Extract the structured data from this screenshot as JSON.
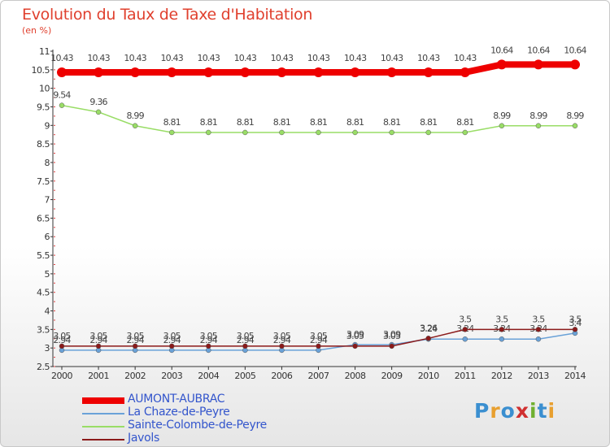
{
  "header": {
    "title": "Evolution du Taux de Taxe d'Habitation",
    "unit": "(en %)"
  },
  "logo": {
    "text": "Proxiti",
    "letters": [
      "P",
      "r",
      "o",
      "x",
      "i",
      "t",
      "i"
    ],
    "colors": [
      "#3b8fd0",
      "#e8a030",
      "#3b8fd0",
      "#d03030",
      "#70b030",
      "#3b8fd0",
      "#e8a030"
    ]
  },
  "chart_data": {
    "type": "line",
    "title": "Evolution du Taux de Taxe d'Habitation",
    "ylabel": "(en %)",
    "xlabel": "",
    "x": [
      "2000",
      "2001",
      "2002",
      "2003",
      "2004",
      "2005",
      "2006",
      "2007",
      "2008",
      "2009",
      "2010",
      "2011",
      "2012",
      "2013",
      "2014"
    ],
    "ylim": [
      2.5,
      11
    ],
    "yticks": [
      "2.5",
      "3",
      "3.5",
      "4",
      "4.5",
      "5",
      "5.5",
      "6",
      "6.5",
      "7",
      "7.5",
      "8",
      "8.5",
      "9",
      "9.5",
      "10",
      "10.5",
      "11"
    ],
    "grid": false,
    "legend_position": "bottom-left",
    "series": [
      {
        "name": "AUMONT-AUBRAC",
        "color": "#ee0000",
        "width": 8,
        "values": [
          10.43,
          10.43,
          10.43,
          10.43,
          10.43,
          10.43,
          10.43,
          10.43,
          10.43,
          10.43,
          10.43,
          10.43,
          10.64,
          10.64,
          10.64
        ],
        "labels": [
          "10.43",
          "10.43",
          "10.43",
          "10.43",
          "10.43",
          "10.43",
          "10.43",
          "10.43",
          "10.43",
          "10.43",
          "10.43",
          "10.43",
          "10.64",
          "10.64",
          "10.64"
        ]
      },
      {
        "name": "La Chaze-de-Peyre",
        "color": "#6aa2d8",
        "width": 1.5,
        "values": [
          2.94,
          2.94,
          2.94,
          2.94,
          2.94,
          2.94,
          2.94,
          2.94,
          3.09,
          3.09,
          3.24,
          3.24,
          3.24,
          3.24,
          3.4
        ],
        "labels": [
          "2.94",
          "2.94",
          "2.94",
          "2.94",
          "2.94",
          "2.94",
          "2.94",
          "2.94",
          "3.09",
          "3.09",
          "3.24",
          "3.24",
          "3.24",
          "3.24",
          "3.4"
        ]
      },
      {
        "name": "Sainte-Colombe-de-Peyre",
        "color": "#99dd66",
        "width": 1.5,
        "values": [
          9.54,
          9.36,
          8.99,
          8.81,
          8.81,
          8.81,
          8.81,
          8.81,
          8.81,
          8.81,
          8.81,
          8.81,
          8.99,
          8.99,
          8.99
        ],
        "labels": [
          "9.54",
          "9.36",
          "8.99",
          "8.81",
          "8.81",
          "8.81",
          "8.81",
          "8.81",
          "8.81",
          "8.81",
          "8.81",
          "8.81",
          "8.99",
          "8.99",
          "8.99"
        ]
      },
      {
        "name": "Javols",
        "color": "#8b1a1a",
        "width": 1.5,
        "values": [
          3.05,
          3.05,
          3.05,
          3.05,
          3.05,
          3.05,
          3.05,
          3.05,
          3.05,
          3.05,
          3.26,
          3.5,
          3.5,
          3.5,
          3.5
        ],
        "labels": [
          "3.05",
          "3.05",
          "3.05",
          "3.05",
          "3.05",
          "3.05",
          "3.05",
          "3.05",
          "3.05",
          "3.05",
          "3.26",
          "3.5",
          "3.5",
          "3.5",
          "3.5"
        ]
      }
    ]
  }
}
